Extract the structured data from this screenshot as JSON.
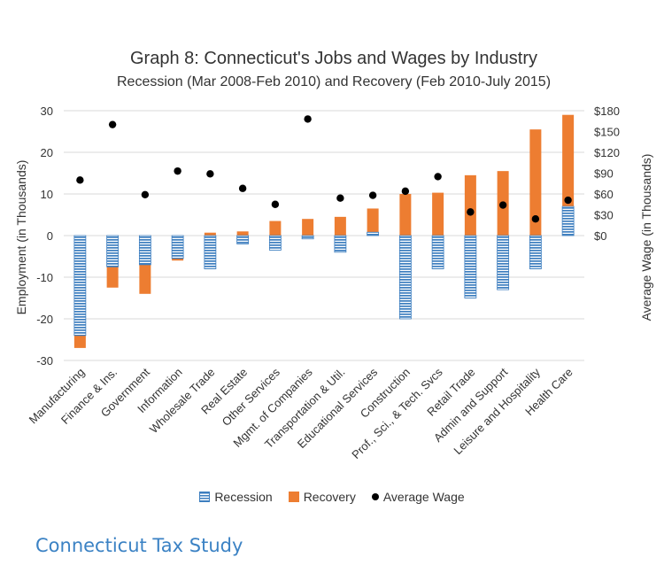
{
  "chart_data": {
    "type": "bar",
    "title": "Graph 8: Connecticut's Jobs and Wages by Industry",
    "subtitle": "Recession (Mar 2008-Feb 2010) and Recovery (Feb 2010-July 2015)",
    "ylabel": "Employment (in Thousands)",
    "y2label": "Average Wage (in Thousands)",
    "ylim": [
      -30,
      30
    ],
    "yticks": [
      30,
      20,
      10,
      0,
      -10,
      -20,
      -30
    ],
    "y2lim": [
      0,
      180
    ],
    "y2ticks": [
      0,
      30,
      60,
      90,
      120,
      150,
      180
    ],
    "y2tick_labels": [
      "$0",
      "$30",
      "$60",
      "$90",
      "$120",
      "$150",
      "$180"
    ],
    "grid": true,
    "legend_position": "bottom",
    "categories": [
      "Manufacturing",
      "Finance & Ins.",
      "Government",
      "Information",
      "Wholesale Trade",
      "Real Estate",
      "Other Services",
      "Mgmt. of Companies",
      "Transportation & Util.",
      "Educational Services",
      "Construction",
      "Prof., Sci., & Tech. Svcs",
      "Retail Trade",
      "Admin and Support",
      "Leisure and Hospitality",
      "Health Care"
    ],
    "series": [
      {
        "name": "Recession",
        "kind": "bar",
        "axis": "left",
        "pattern": "striped",
        "color": "#3d7ebf",
        "values": [
          -24,
          -7.5,
          -7,
          -5.5,
          -8,
          -2,
          -3.5,
          -0.8,
          -4,
          0.8,
          -20,
          -8,
          -15,
          -13,
          -8,
          7
        ]
      },
      {
        "name": "Recovery",
        "kind": "bar",
        "axis": "left",
        "color": "#ed7d31",
        "values": [
          -3,
          -5,
          -7,
          -0.5,
          0.7,
          1,
          3.5,
          4,
          4.5,
          6.5,
          10,
          10.3,
          14.5,
          15.5,
          25.5,
          29
        ]
      },
      {
        "name": "Average Wage",
        "kind": "scatter",
        "axis": "right",
        "color": "#000000",
        "values": [
          80,
          160,
          59,
          93,
          89,
          68,
          45,
          168,
          54,
          58,
          64,
          85,
          34,
          44,
          24,
          51
        ]
      }
    ]
  },
  "caption": "Connecticut Tax Study"
}
